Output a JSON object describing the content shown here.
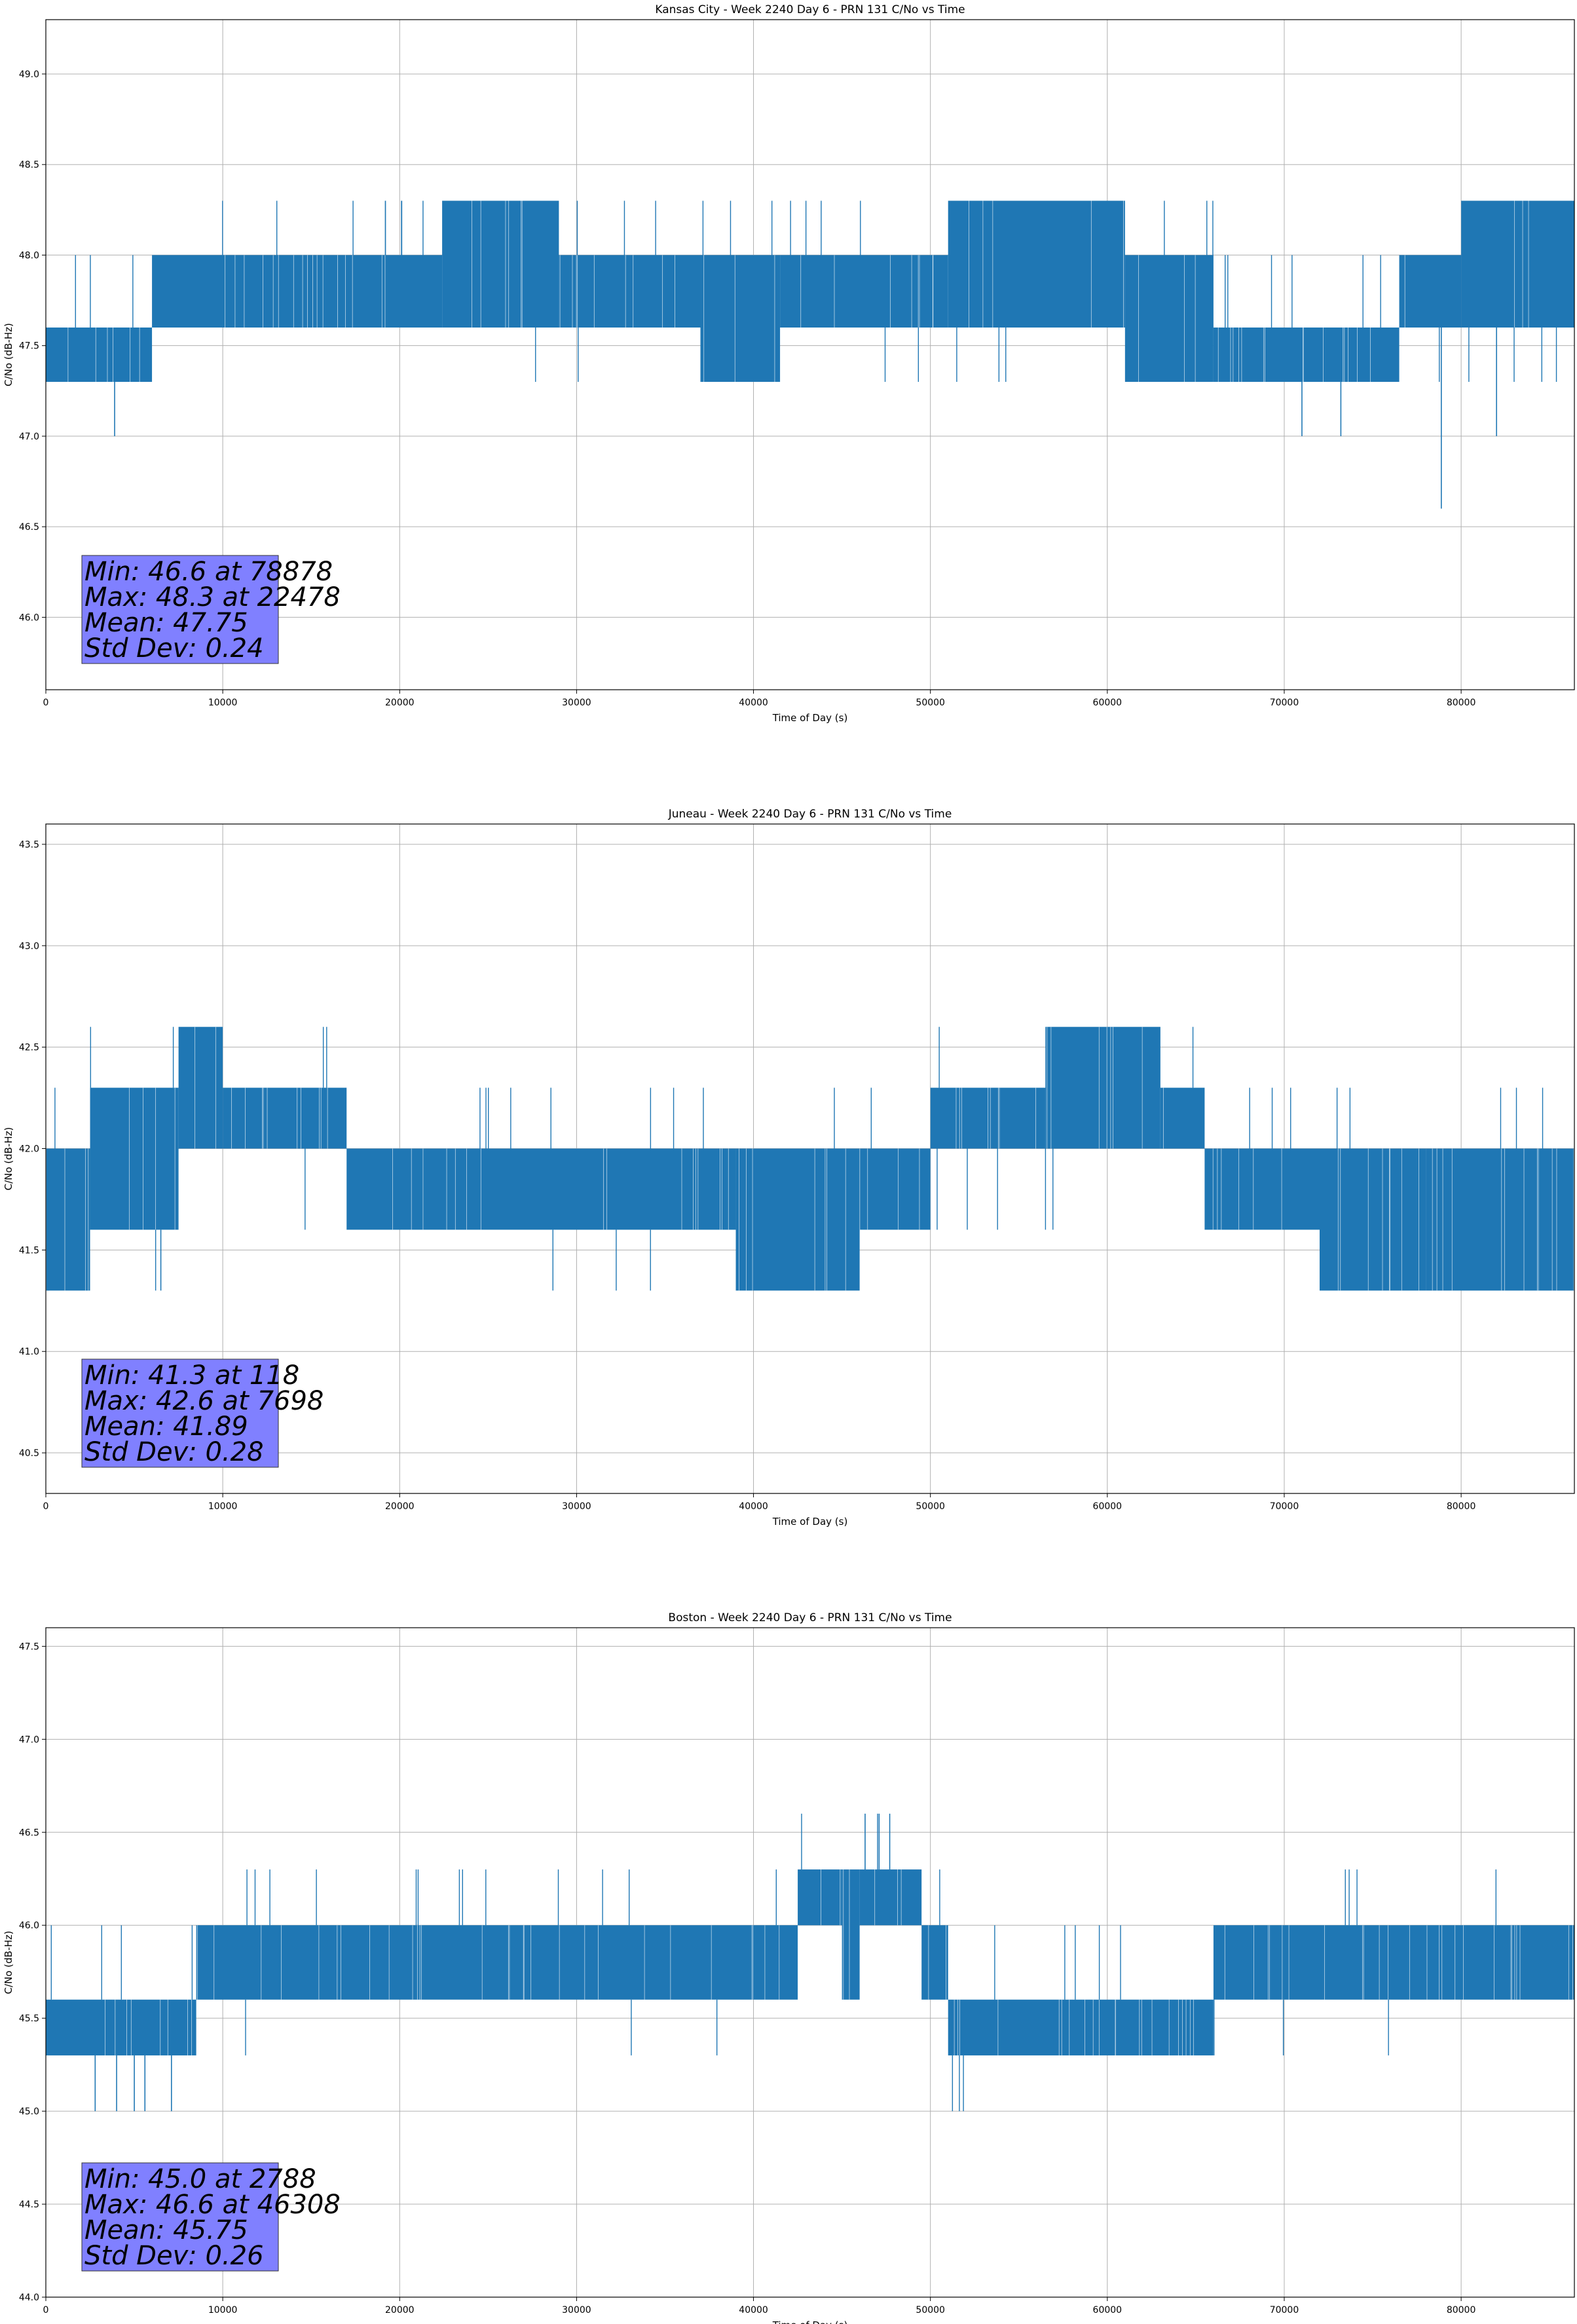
{
  "figure": {
    "background": "#ffffff",
    "line_color": "#1f77b4",
    "stats_box_color": "#8080ff",
    "grid": true
  },
  "chart_data": [
    {
      "type": "line",
      "title": "Kansas City - Week 2240 Day 6 - PRN 131 C/No vs Time",
      "xlabel": "Time of Day (s)",
      "ylabel": "C/No (dB-Hz)",
      "xlim": [
        0,
        86400
      ],
      "ylim": [
        45.6,
        49.3
      ],
      "xticks": [
        "0",
        "10000",
        "20000",
        "30000",
        "40000",
        "50000",
        "60000",
        "70000",
        "80000"
      ],
      "yticks": [
        "46.0",
        "46.5",
        "47.0",
        "47.5",
        "48.0",
        "48.5",
        "49.0"
      ],
      "levels": [
        47.3,
        47.6,
        48.0,
        48.3
      ],
      "segments": [
        {
          "x": [
            0,
            6000
          ],
          "low": 47.3,
          "high": 47.6
        },
        {
          "x": [
            6000,
            22400
          ],
          "low": 47.6,
          "high": 48.0
        },
        {
          "x": [
            22400,
            29000
          ],
          "low": 47.6,
          "high": 48.3
        },
        {
          "x": [
            29000,
            37000
          ],
          "low": 47.6,
          "high": 48.0
        },
        {
          "x": [
            37000,
            41500
          ],
          "low": 47.3,
          "high": 48.0
        },
        {
          "x": [
            41500,
            51000
          ],
          "low": 47.6,
          "high": 48.0
        },
        {
          "x": [
            51000,
            61000
          ],
          "low": 47.6,
          "high": 48.3
        },
        {
          "x": [
            61000,
            66000
          ],
          "low": 47.3,
          "high": 48.0
        },
        {
          "x": [
            66000,
            76500
          ],
          "low": 47.3,
          "high": 47.6
        },
        {
          "x": [
            76500,
            80000
          ],
          "low": 47.6,
          "high": 48.0
        },
        {
          "x": [
            80000,
            86400
          ],
          "low": 47.6,
          "high": 48.3
        }
      ],
      "spikes": [
        {
          "x": 3888,
          "y": 47.0
        },
        {
          "x": 71000,
          "y": 47.0
        },
        {
          "x": 73200,
          "y": 47.0
        },
        {
          "x": 78878,
          "y": 46.6
        },
        {
          "x": 82000,
          "y": 47.0
        }
      ],
      "stats": {
        "min": "Min: 46.6 at 78878",
        "max": "Max: 48.3 at 22478",
        "mean": "Mean: 47.75",
        "std": "Std Dev: 0.24"
      }
    },
    {
      "type": "line",
      "title": "Juneau - Week 2240 Day 6 - PRN 131 C/No vs Time",
      "xlabel": "Time of Day (s)",
      "ylabel": "C/No (dB-Hz)",
      "xlim": [
        0,
        86400
      ],
      "ylim": [
        40.3,
        43.6
      ],
      "xticks": [
        "0",
        "10000",
        "20000",
        "30000",
        "40000",
        "50000",
        "60000",
        "70000",
        "80000"
      ],
      "yticks": [
        "40.5",
        "41.0",
        "41.5",
        "42.0",
        "42.5",
        "43.0",
        "43.5"
      ],
      "levels": [
        41.3,
        41.6,
        42.0,
        42.3,
        42.6
      ],
      "segments": [
        {
          "x": [
            0,
            2500
          ],
          "low": 41.3,
          "high": 42.0
        },
        {
          "x": [
            2500,
            7500
          ],
          "low": 41.6,
          "high": 42.3
        },
        {
          "x": [
            7500,
            10000
          ],
          "low": 42.0,
          "high": 42.6
        },
        {
          "x": [
            10000,
            17000
          ],
          "low": 42.0,
          "high": 42.3
        },
        {
          "x": [
            17000,
            39000
          ],
          "low": 41.6,
          "high": 42.0
        },
        {
          "x": [
            39000,
            46000
          ],
          "low": 41.3,
          "high": 42.0
        },
        {
          "x": [
            46000,
            50000
          ],
          "low": 41.6,
          "high": 42.0
        },
        {
          "x": [
            50000,
            56500
          ],
          "low": 42.0,
          "high": 42.3
        },
        {
          "x": [
            56500,
            63000
          ],
          "low": 42.0,
          "high": 42.6
        },
        {
          "x": [
            63000,
            65500
          ],
          "low": 42.0,
          "high": 42.3
        },
        {
          "x": [
            65500,
            72000
          ],
          "low": 41.6,
          "high": 42.0
        },
        {
          "x": [
            72000,
            78000
          ],
          "low": 41.3,
          "high": 42.0
        },
        {
          "x": [
            78000,
            86400
          ],
          "low": 41.3,
          "high": 42.0
        }
      ],
      "spikes": [
        {
          "x": 118,
          "y": 41.3
        },
        {
          "x": 6500,
          "y": 41.3
        },
        {
          "x": 7698,
          "y": 42.6
        }
      ],
      "stats": {
        "min": "Min: 41.3 at 118",
        "max": "Max: 42.6 at 7698",
        "mean": "Mean: 41.89",
        "std": "Std Dev: 0.28"
      }
    },
    {
      "type": "line",
      "title": "Boston - Week 2240 Day 6 - PRN 131 C/No vs Time",
      "xlabel": "Time of Day (s)",
      "ylabel": "C/No (dB-Hz)",
      "xlim": [
        0,
        86400
      ],
      "ylim": [
        44.0,
        47.6
      ],
      "xticks": [
        "0",
        "10000",
        "20000",
        "30000",
        "40000",
        "50000",
        "60000",
        "70000",
        "80000"
      ],
      "yticks": [
        "44.0",
        "44.5",
        "45.0",
        "45.5",
        "46.0",
        "46.5",
        "47.0",
        "47.5"
      ],
      "levels": [
        45.0,
        45.3,
        45.6,
        46.0,
        46.3,
        46.6
      ],
      "segments": [
        {
          "x": [
            0,
            8500
          ],
          "low": 45.3,
          "high": 45.6
        },
        {
          "x": [
            8500,
            42500
          ],
          "low": 45.6,
          "high": 46.0
        },
        {
          "x": [
            42500,
            45000
          ],
          "low": 46.0,
          "high": 46.3
        },
        {
          "x": [
            45000,
            46000
          ],
          "low": 45.6,
          "high": 46.3
        },
        {
          "x": [
            46000,
            49500
          ],
          "low": 46.0,
          "high": 46.3
        },
        {
          "x": [
            49500,
            51000
          ],
          "low": 45.6,
          "high": 46.0
        },
        {
          "x": [
            51000,
            66000
          ],
          "low": 45.3,
          "high": 45.6
        },
        {
          "x": [
            66000,
            86400
          ],
          "low": 45.6,
          "high": 46.0
        }
      ],
      "spikes": [
        {
          "x": 2788,
          "y": 45.0
        },
        {
          "x": 4000,
          "y": 45.0
        },
        {
          "x": 5000,
          "y": 45.0
        },
        {
          "x": 5600,
          "y": 45.0
        },
        {
          "x": 7100,
          "y": 45.0
        },
        {
          "x": 46308,
          "y": 46.6
        },
        {
          "x": 47100,
          "y": 46.6
        },
        {
          "x": 47700,
          "y": 46.6
        }
      ],
      "stats": {
        "min": "Min: 45.0 at 2788",
        "max": "Max: 46.6 at 46308",
        "mean": "Mean: 45.75",
        "std": "Std Dev: 0.26"
      }
    }
  ]
}
